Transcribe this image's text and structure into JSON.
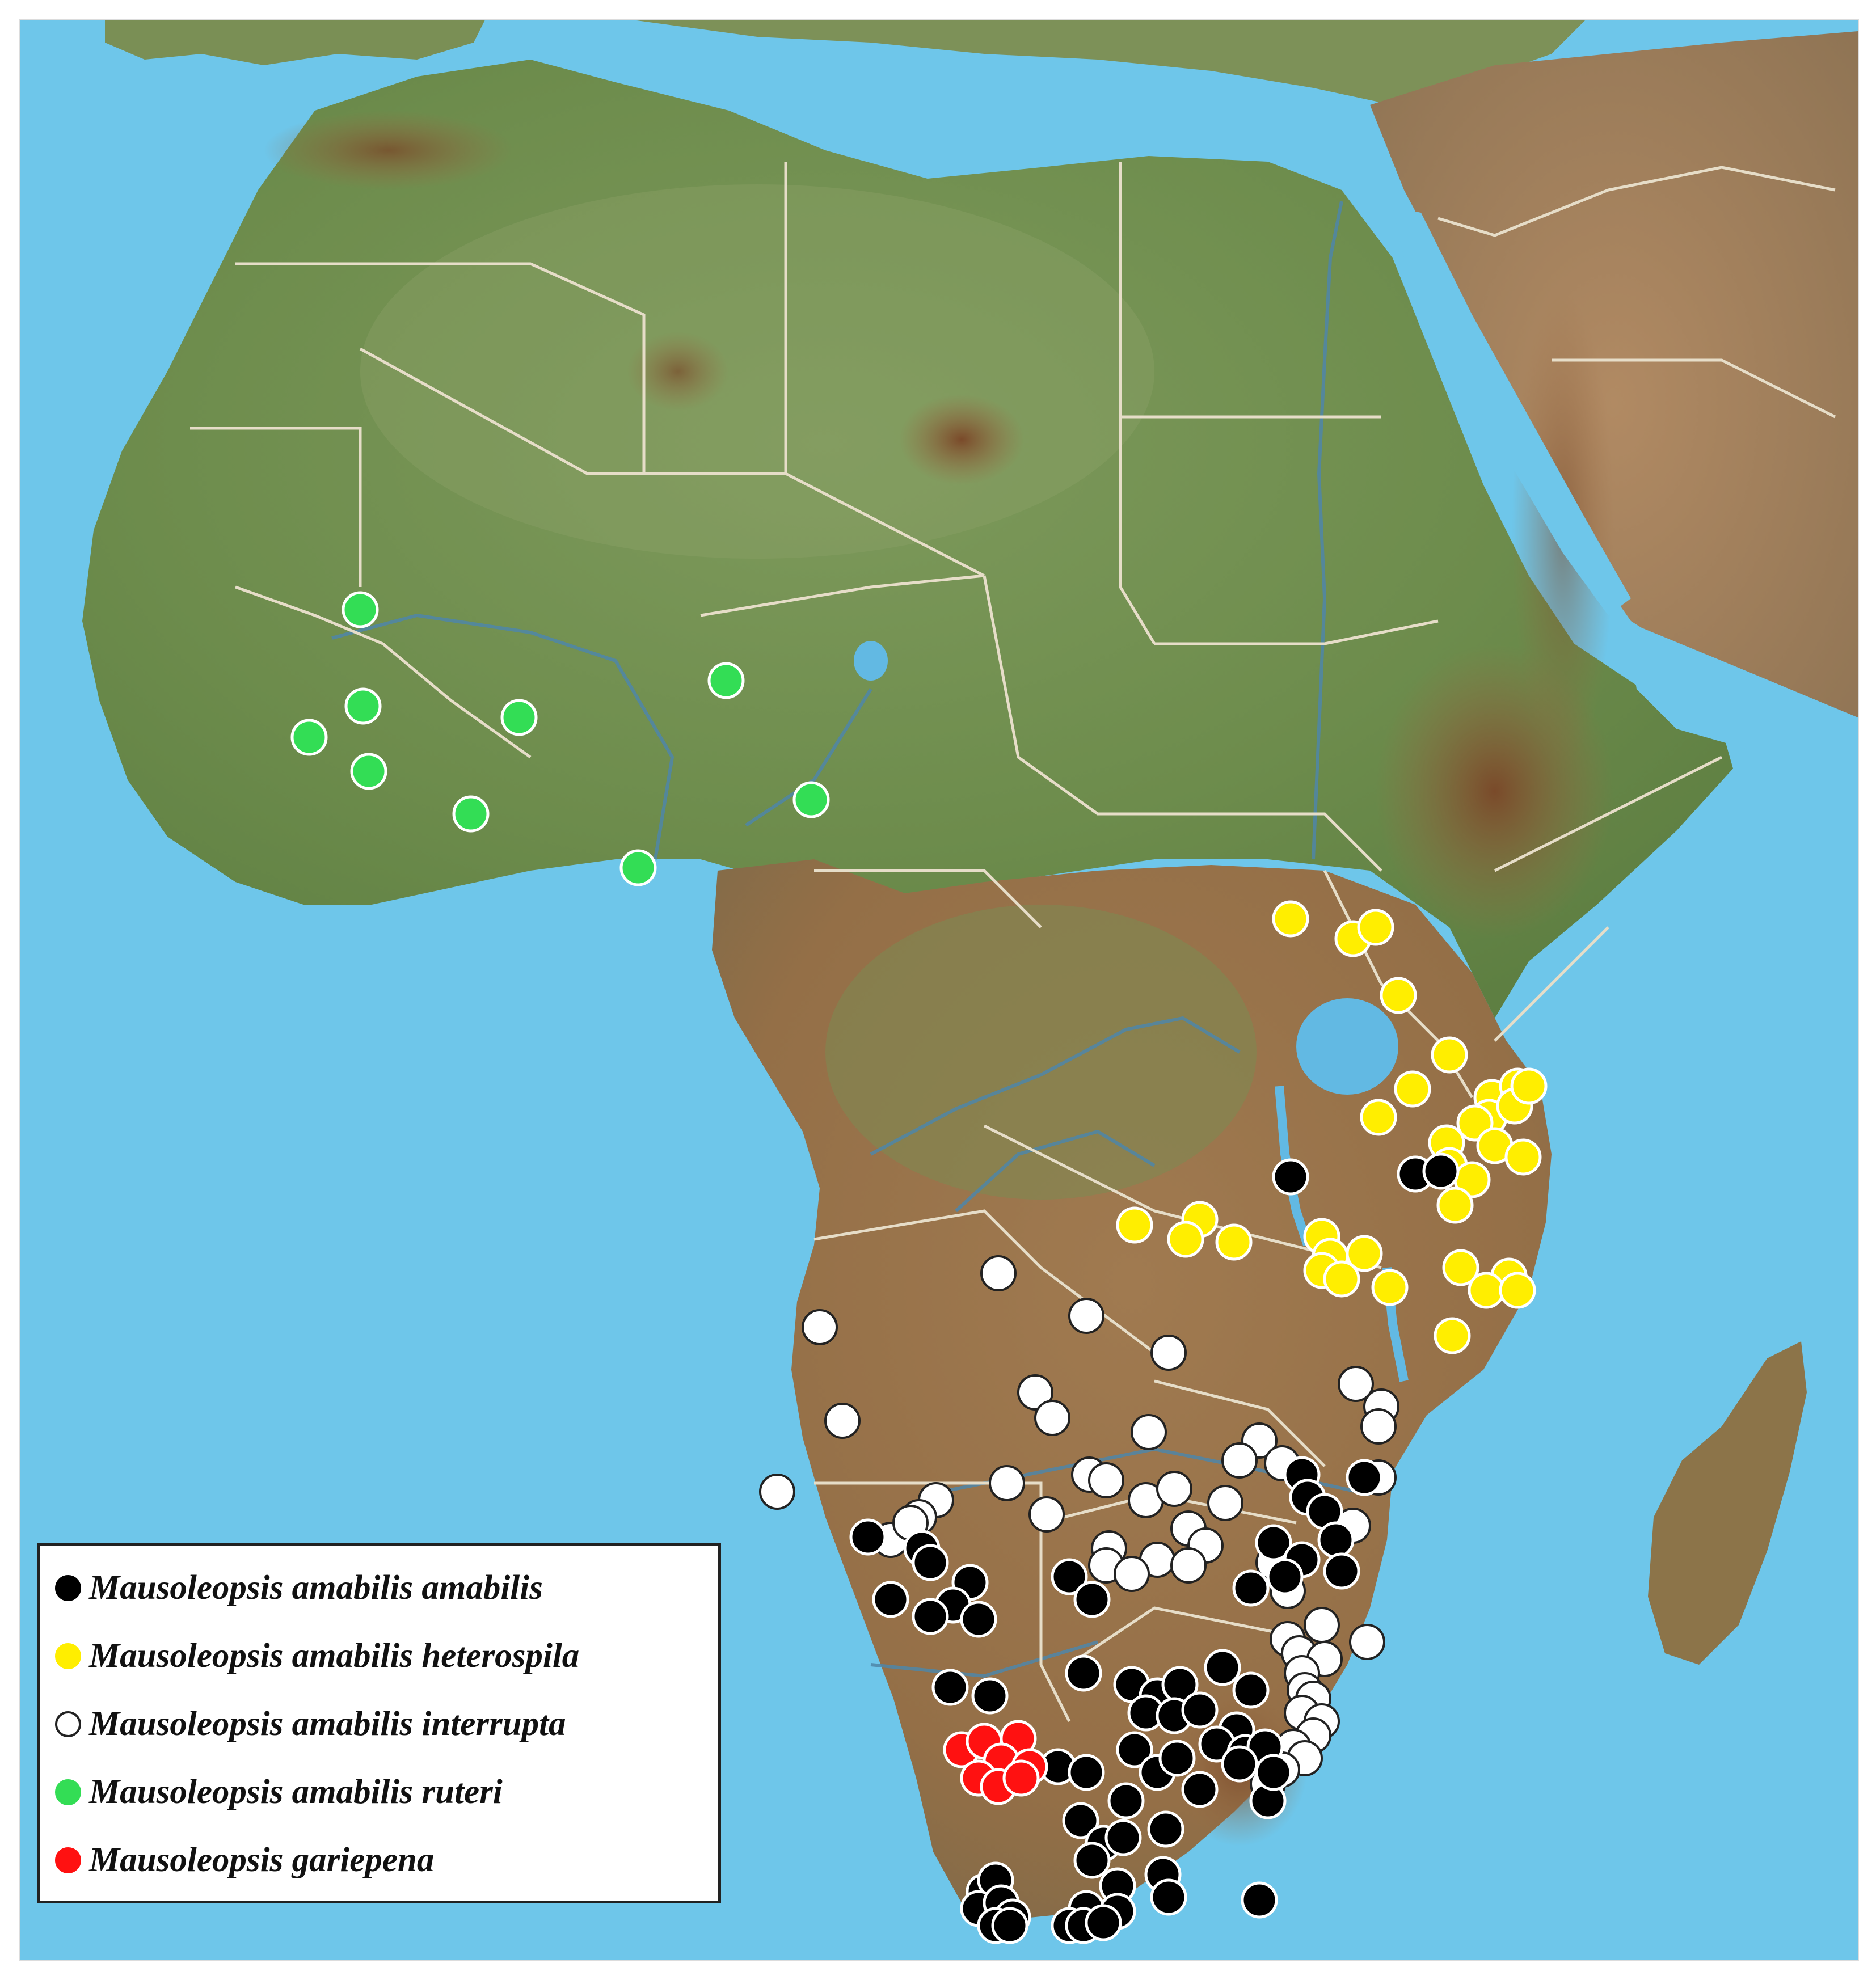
{
  "colors": {
    "ocean": "#6ec6ea",
    "land_green": "#6f8f4e",
    "land_brown": "#9a7650",
    "border": "#e6ddc8",
    "river": "#4f86a8",
    "lake": "#62b9e3"
  },
  "legend": {
    "items": [
      {
        "key": "amabilis",
        "label": "Mausoleopsis amabilis amabilis",
        "color": "#000000",
        "stroke": "#000000"
      },
      {
        "key": "heterospila",
        "label": "Mausoleopsis amabilis heterospila",
        "color": "#ffee00",
        "stroke": "#ffee00"
      },
      {
        "key": "interrupta",
        "label": "Mausoleopsis amabilis interrupta",
        "color": "#ffffff",
        "stroke": "#222222"
      },
      {
        "key": "ruteri",
        "label": "Mausoleopsis amabilis ruteri",
        "color": "#33dd55",
        "stroke": "#33dd55"
      },
      {
        "key": "gariepena",
        "label": "Mausoleopsis gariepena",
        "color": "#ff1111",
        "stroke": "#ff1111"
      }
    ]
  }
}
